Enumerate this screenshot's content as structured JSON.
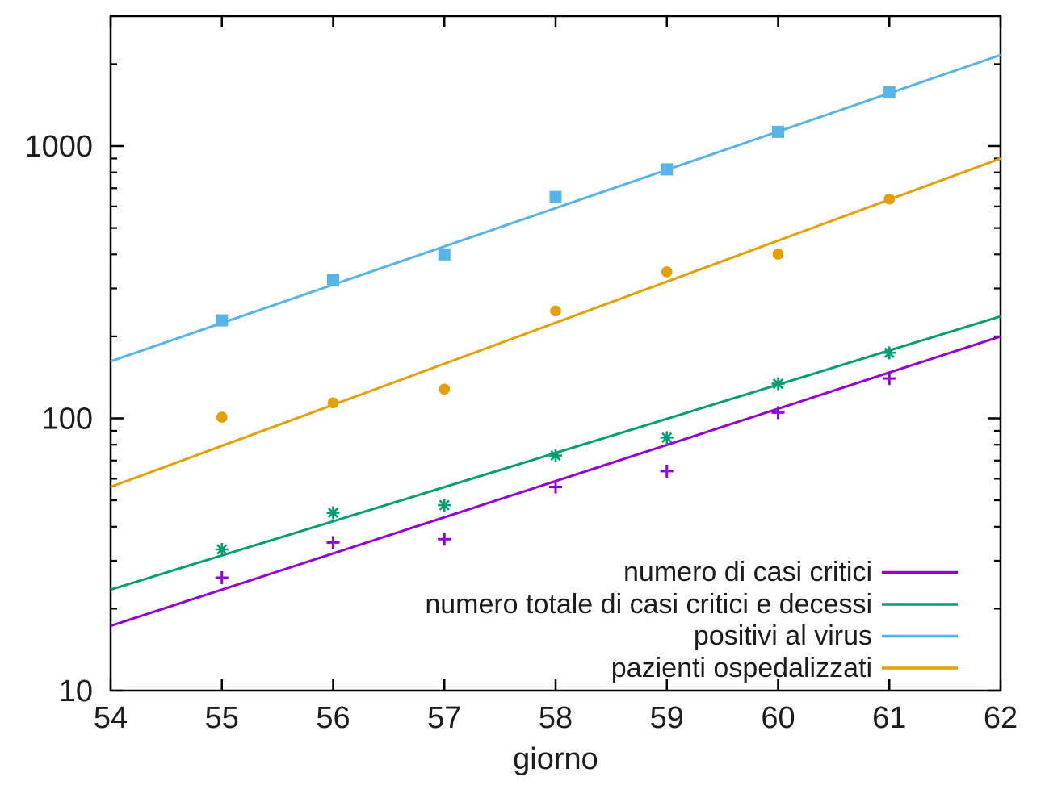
{
  "figure": {
    "background": "#ffffff",
    "text_color": "#1c1c1c",
    "border_color": "#000000"
  },
  "chart_data": {
    "type": "scatter",
    "title": "",
    "xlabel": "giorno",
    "ylabel": "",
    "x_axis": {
      "scale": "linear",
      "range": [
        54,
        62
      ],
      "ticks": [
        54,
        55,
        56,
        57,
        58,
        59,
        60,
        61,
        62
      ]
    },
    "y_axis": {
      "scale": "log",
      "range": [
        10,
        3000
      ],
      "major_ticks": [
        10,
        100,
        1000
      ],
      "major_tick_labels": [
        "10",
        "100",
        "1000"
      ],
      "minor_ticks_per_decade": [
        2,
        3,
        4,
        5,
        6,
        7,
        8,
        9
      ]
    },
    "grid": false,
    "legend_position": "inside-bottom-right",
    "x": [
      55,
      56,
      57,
      58,
      59,
      60,
      61
    ],
    "series": [
      {
        "name": "numero di casi critici",
        "color": "#9400d3",
        "marker": "plus",
        "values": [
          26,
          35,
          36,
          56,
          64,
          105,
          140
        ],
        "fit_line": {
          "x": [
            54,
            62
          ],
          "y": [
            17.3,
            200
          ]
        }
      },
      {
        "name": "numero totale di casi critici e decessi",
        "color": "#009e73",
        "marker": "asterisk",
        "values": [
          33,
          45,
          48,
          73,
          85,
          134,
          174
        ],
        "fit_line": {
          "x": [
            54,
            62
          ],
          "y": [
            23.5,
            237
          ]
        }
      },
      {
        "name": "positivi al virus",
        "color": "#56b4e9",
        "marker": "filled-square",
        "values": [
          229,
          322,
          400,
          650,
          821,
          1128,
          1577
        ],
        "fit_line": {
          "x": [
            54,
            62
          ],
          "y": [
            162,
            2160
          ]
        }
      },
      {
        "name": "pazienti ospedalizzati",
        "color": "#e69f00",
        "marker": "filled-circle",
        "values": [
          101,
          114,
          128,
          248,
          345,
          401,
          639
        ],
        "fit_line": {
          "x": [
            54,
            62
          ],
          "y": [
            56,
            900
          ]
        }
      }
    ]
  }
}
